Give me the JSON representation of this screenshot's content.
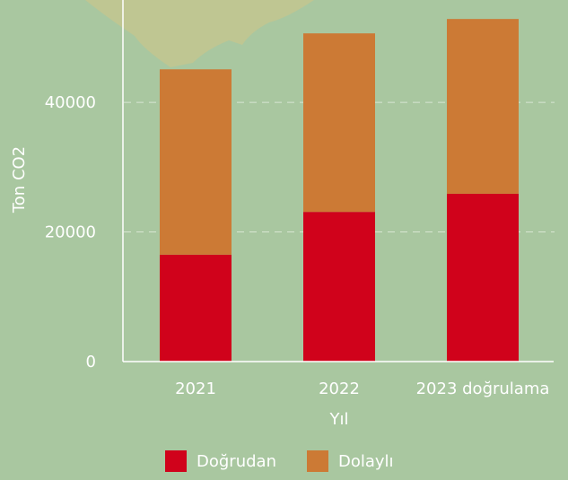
{
  "chart_data": {
    "type": "stacked_bar",
    "x_label": "Yıl",
    "y_label": "Ton CO2",
    "categories": [
      "2021",
      "2022",
      "2023 doğrulama"
    ],
    "series": [
      {
        "name": "Doğrudan",
        "color": "#d0021b",
        "values": [
          16500,
          23100,
          25900
        ]
      },
      {
        "name": "Dolaylı",
        "color": "#cc7a35",
        "values": [
          28600,
          27550,
          26970
        ]
      }
    ],
    "ylim": [
      0,
      55800
    ],
    "yticks": [
      0,
      20000,
      40000
    ],
    "grid": true
  }
}
